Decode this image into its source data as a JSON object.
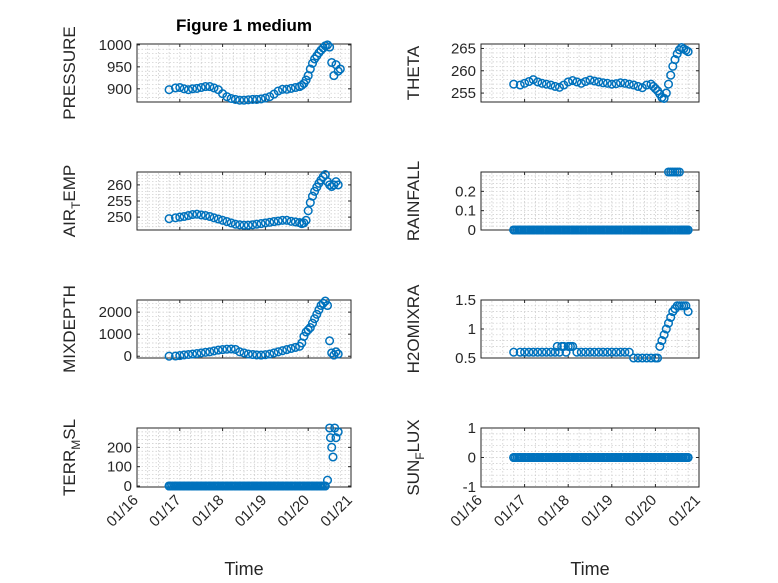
{
  "figure": {
    "background": "#ffffff",
    "marker_color": "#0072bd",
    "xlabel": "Time",
    "xticklabels": [
      "01/16",
      "01/17",
      "01/18",
      "01/19",
      "01/20",
      "01/21"
    ]
  },
  "chart_data": [
    {
      "type": "scatter",
      "title": "Figure 1 medium",
      "ylabel": "PRESSURE",
      "xlim": [
        16,
        21
      ],
      "ylim": [
        870,
        1002
      ],
      "yticks": [
        900,
        950,
        1000
      ],
      "series": [
        {
          "x": [
            16.75,
            16.9,
            17.0,
            17.1,
            17.2,
            17.3,
            17.4,
            17.5,
            17.6,
            17.7,
            17.8,
            17.9,
            18.0,
            18.1,
            18.2,
            18.3,
            18.4,
            18.5,
            18.6,
            18.7,
            18.8,
            18.9,
            19.0,
            19.1,
            19.2,
            19.3,
            19.4,
            19.5,
            19.6,
            19.7,
            19.8,
            19.85,
            19.9,
            19.95,
            20.0,
            20.05,
            20.1,
            20.15,
            20.2,
            20.25,
            20.3,
            20.35,
            20.4,
            20.45,
            20.5,
            20.55,
            20.6,
            20.65,
            20.7,
            20.75
          ],
          "y": [
            898,
            902,
            903,
            900,
            898,
            900,
            901,
            903,
            905,
            905,
            902,
            898,
            889,
            882,
            878,
            876,
            874,
            874,
            875,
            876,
            876,
            877,
            879,
            882,
            888,
            895,
            899,
            899,
            901,
            903,
            905,
            908,
            912,
            920,
            930,
            945,
            958,
            968,
            975,
            982,
            988,
            993,
            998,
            1000,
            995,
            960,
            930,
            955,
            940,
            945
          ]
        }
      ]
    },
    {
      "type": "scatter",
      "ylabel": "THETA",
      "xlim": [
        16,
        21
      ],
      "ylim": [
        253,
        266
      ],
      "yticks": [
        255,
        260,
        265
      ],
      "series": [
        {
          "x": [
            16.75,
            16.9,
            17.0,
            17.1,
            17.2,
            17.3,
            17.4,
            17.5,
            17.6,
            17.7,
            17.8,
            17.9,
            18.0,
            18.1,
            18.2,
            18.3,
            18.4,
            18.5,
            18.6,
            18.7,
            18.8,
            18.9,
            19.0,
            19.1,
            19.2,
            19.3,
            19.4,
            19.5,
            19.6,
            19.7,
            19.8,
            19.9,
            19.95,
            20.0,
            20.05,
            20.1,
            20.15,
            20.2,
            20.25,
            20.3,
            20.35,
            20.4,
            20.45,
            20.5,
            20.55,
            20.6,
            20.65,
            20.7,
            20.75
          ],
          "y": [
            257,
            256.8,
            257.2,
            257.6,
            258,
            257.5,
            257.2,
            257,
            256.8,
            256.5,
            256.3,
            256.8,
            257.5,
            257.8,
            257.5,
            257.2,
            257.6,
            257.9,
            257.7,
            257.5,
            257.3,
            257.2,
            257,
            257.1,
            257.3,
            257.2,
            257,
            256.8,
            256.5,
            256.2,
            256.8,
            257,
            256.5,
            256,
            255.5,
            254.8,
            254,
            253.8,
            255,
            257,
            259,
            261,
            262.5,
            263.8,
            264.7,
            265.2,
            264.9,
            264.6,
            264.3
          ]
        }
      ]
    },
    {
      "type": "scatter",
      "ylabel": "AIR_TEMP",
      "xlim": [
        16,
        21
      ],
      "ylim": [
        246,
        264
      ],
      "yticks": [
        250,
        255,
        260
      ],
      "series": [
        {
          "x": [
            16.75,
            16.9,
            17.0,
            17.1,
            17.2,
            17.3,
            17.4,
            17.5,
            17.6,
            17.7,
            17.8,
            17.9,
            18.0,
            18.1,
            18.2,
            18.3,
            18.4,
            18.5,
            18.6,
            18.7,
            18.8,
            18.9,
            19.0,
            19.1,
            19.2,
            19.3,
            19.4,
            19.5,
            19.6,
            19.7,
            19.8,
            19.85,
            19.9,
            19.95,
            20.0,
            20.05,
            20.1,
            20.15,
            20.2,
            20.25,
            20.3,
            20.35,
            20.4,
            20.45,
            20.5,
            20.55,
            20.6,
            20.65,
            20.7
          ],
          "y": [
            249.5,
            249.8,
            250,
            250.2,
            250.5,
            250.8,
            250.9,
            250.7,
            250.5,
            250.2,
            249.8,
            249.4,
            249,
            248.6,
            248.2,
            247.8,
            247.6,
            247.5,
            247.5,
            247.6,
            247.8,
            248,
            248.2,
            248.4,
            248.6,
            248.8,
            249,
            249,
            248.7,
            248.5,
            248.3,
            248,
            248.2,
            249,
            252,
            254.5,
            256.5,
            258,
            259.3,
            260.5,
            261.5,
            262.5,
            263.2,
            261,
            260,
            259.5,
            260,
            261,
            260
          ]
        }
      ]
    },
    {
      "type": "scatter",
      "ylabel": "RAINFALL",
      "xlim": [
        16,
        21
      ],
      "ylim": [
        0,
        0.3
      ],
      "yticks": [
        0,
        0.1,
        0.2
      ],
      "series": [
        {
          "x": [
            16.75,
            16.9,
            17.0,
            17.1,
            17.2,
            17.3,
            17.4,
            17.5,
            17.6,
            17.7,
            17.8,
            17.9,
            18.0,
            18.1,
            18.2,
            18.3,
            18.4,
            18.5,
            18.6,
            18.7,
            18.8,
            18.9,
            19.0,
            19.1,
            19.2,
            19.3,
            19.4,
            19.5,
            19.6,
            19.7,
            19.8,
            19.9,
            20.0,
            20.05,
            20.1,
            20.15,
            20.2,
            20.25,
            20.3,
            20.35,
            20.4,
            20.45,
            20.5,
            20.55,
            20.6,
            20.65,
            20.7,
            20.75
          ],
          "y": [
            0,
            0,
            0,
            0,
            0,
            0,
            0,
            0,
            0,
            0,
            0,
            0,
            0,
            0,
            0,
            0,
            0,
            0,
            0,
            0,
            0,
            0,
            0,
            0,
            0,
            0,
            0,
            0,
            0,
            0,
            0,
            0,
            0,
            0,
            0,
            0,
            0,
            0,
            0.3,
            0.3,
            0.3,
            0.3,
            0.3,
            0.3,
            0,
            0,
            0,
            0
          ]
        }
      ]
    },
    {
      "type": "scatter",
      "ylabel": "MIXDEPTH",
      "xlim": [
        16,
        21
      ],
      "ylim": [
        -80,
        2550
      ],
      "yticks": [
        0,
        1000,
        2000
      ],
      "series": [
        {
          "x": [
            16.75,
            16.9,
            17.0,
            17.1,
            17.2,
            17.3,
            17.4,
            17.5,
            17.6,
            17.7,
            17.8,
            17.9,
            18.0,
            18.1,
            18.2,
            18.3,
            18.4,
            18.5,
            18.6,
            18.7,
            18.8,
            18.9,
            19.0,
            19.1,
            19.2,
            19.3,
            19.4,
            19.5,
            19.6,
            19.7,
            19.8,
            19.85,
            19.9,
            19.95,
            20.0,
            20.05,
            20.1,
            20.15,
            20.2,
            20.25,
            20.3,
            20.35,
            20.4,
            20.45,
            20.5,
            20.55,
            20.6,
            20.65,
            20.7
          ],
          "y": [
            0,
            10,
            30,
            60,
            80,
            100,
            120,
            150,
            180,
            200,
            240,
            280,
            300,
            320,
            330,
            310,
            200,
            150,
            100,
            80,
            60,
            50,
            70,
            100,
            150,
            200,
            250,
            300,
            350,
            400,
            450,
            600,
            900,
            1100,
            1200,
            1300,
            1500,
            1700,
            1900,
            2100,
            2300,
            2400,
            2500,
            2300,
            700,
            150,
            50,
            200,
            100
          ]
        }
      ]
    },
    {
      "type": "scatter",
      "ylabel": "H2OMIXRA",
      "xlim": [
        16,
        21
      ],
      "ylim": [
        0.5,
        1.5
      ],
      "yticks": [
        0.5,
        1,
        1.5
      ],
      "series": [
        {
          "x": [
            16.75,
            16.9,
            17.0,
            17.1,
            17.2,
            17.3,
            17.4,
            17.5,
            17.6,
            17.7,
            17.75,
            17.8,
            17.85,
            17.9,
            17.95,
            18.0,
            18.05,
            18.1,
            18.2,
            18.3,
            18.4,
            18.5,
            18.6,
            18.7,
            18.8,
            18.9,
            19.0,
            19.1,
            19.2,
            19.3,
            19.4,
            19.5,
            19.6,
            19.7,
            19.8,
            19.9,
            20.0,
            20.05,
            20.1,
            20.15,
            20.2,
            20.25,
            20.3,
            20.35,
            20.4,
            20.45,
            20.5,
            20.55,
            20.6,
            20.65,
            20.7,
            20.75
          ],
          "y": [
            0.6,
            0.6,
            0.6,
            0.6,
            0.6,
            0.6,
            0.6,
            0.6,
            0.6,
            0.6,
            0.7,
            0.6,
            0.7,
            0.7,
            0.6,
            0.7,
            0.7,
            0.7,
            0.6,
            0.6,
            0.6,
            0.6,
            0.6,
            0.6,
            0.6,
            0.6,
            0.6,
            0.6,
            0.6,
            0.6,
            0.6,
            0.5,
            0.5,
            0.5,
            0.5,
            0.5,
            0.5,
            0.5,
            0.7,
            0.8,
            0.9,
            1.0,
            1.1,
            1.2,
            1.3,
            1.35,
            1.4,
            1.4,
            1.4,
            1.4,
            1.4,
            1.3
          ]
        }
      ]
    },
    {
      "type": "scatter",
      "ylabel": "TERR_MSL",
      "xlim": [
        16,
        21
      ],
      "ylim": [
        -5,
        300
      ],
      "yticks": [
        0,
        100,
        200
      ],
      "series": [
        {
          "x": [
            16.75,
            16.9,
            17.0,
            17.1,
            17.2,
            17.3,
            17.4,
            17.5,
            17.6,
            17.7,
            17.8,
            17.9,
            18.0,
            18.1,
            18.2,
            18.3,
            18.4,
            18.5,
            18.6,
            18.7,
            18.8,
            18.9,
            19.0,
            19.1,
            19.2,
            19.3,
            19.4,
            19.5,
            19.6,
            19.7,
            19.8,
            19.9,
            20.0,
            20.1,
            20.2,
            20.3,
            20.4,
            20.45,
            20.5,
            20.52,
            20.55,
            20.58,
            20.62,
            20.65,
            20.7
          ],
          "y": [
            0,
            0,
            0,
            0,
            0,
            0,
            0,
            0,
            0,
            0,
            0,
            0,
            0,
            0,
            0,
            0,
            0,
            0,
            0,
            0,
            0,
            0,
            0,
            0,
            0,
            0,
            0,
            0,
            0,
            0,
            0,
            0,
            0,
            0,
            0,
            0,
            0,
            30,
            300,
            250,
            200,
            150,
            300,
            250,
            280
          ]
        }
      ]
    },
    {
      "type": "scatter",
      "ylabel": "SUN_FLUX",
      "xlim": [
        16,
        21
      ],
      "ylim": [
        -1,
        1
      ],
      "yticks": [
        -1,
        0,
        1
      ],
      "series": [
        {
          "x": [
            16.75,
            16.9,
            17.0,
            17.1,
            17.2,
            17.3,
            17.4,
            17.5,
            17.6,
            17.7,
            17.8,
            17.9,
            18.0,
            18.1,
            18.2,
            18.3,
            18.4,
            18.5,
            18.6,
            18.7,
            18.8,
            18.9,
            19.0,
            19.1,
            19.2,
            19.3,
            19.4,
            19.5,
            19.6,
            19.7,
            19.8,
            19.9,
            20.0,
            20.1,
            20.2,
            20.3,
            20.4,
            20.5,
            20.6,
            20.7,
            20.75
          ],
          "y": [
            0,
            0,
            0,
            0,
            0,
            0,
            0,
            0,
            0,
            0,
            0,
            0,
            0,
            0,
            0,
            0,
            0,
            0,
            0,
            0,
            0,
            0,
            0,
            0,
            0,
            0,
            0,
            0,
            0,
            0,
            0,
            0,
            0,
            0,
            0,
            0,
            0,
            0,
            0,
            0,
            0
          ]
        }
      ]
    }
  ]
}
